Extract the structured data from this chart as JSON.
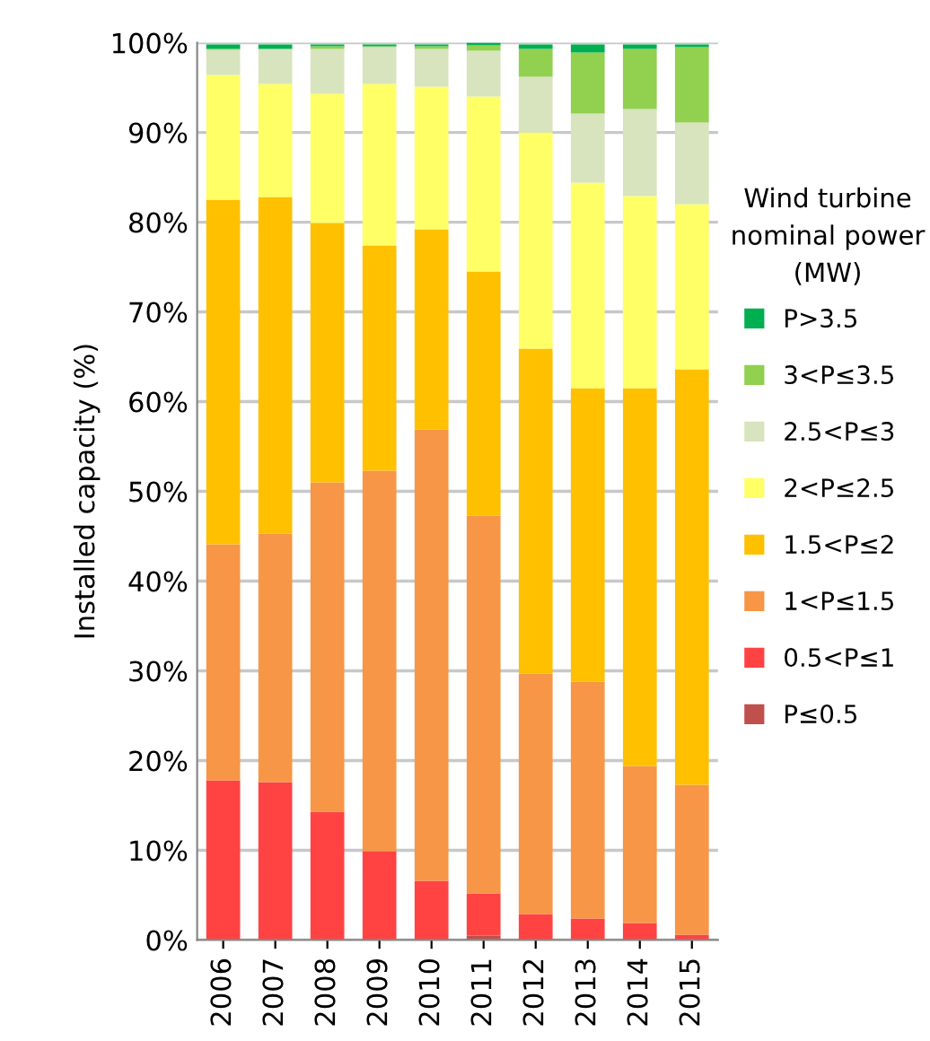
{
  "chart_data": {
    "type": "bar",
    "stacked": true,
    "ylabel": "Installed capacity (%)",
    "legend_title": "Wind turbine nominal power (MW)",
    "legend": "right",
    "grid": "y",
    "categories": [
      "2006",
      "2007",
      "2008",
      "2009",
      "2010",
      "2011",
      "2012",
      "2013",
      "2014",
      "2015"
    ],
    "ylim": [
      0,
      100
    ],
    "yticks": [
      {
        "value": 0,
        "label": "0%"
      },
      {
        "value": 10,
        "label": "10%"
      },
      {
        "value": 20,
        "label": "20%"
      },
      {
        "value": 30,
        "label": "30%"
      },
      {
        "value": 40,
        "label": "40%"
      },
      {
        "value": 50,
        "label": "50%"
      },
      {
        "value": 60,
        "label": "60%"
      },
      {
        "value": 70,
        "label": "70%"
      },
      {
        "value": 80,
        "label": "80%"
      },
      {
        "value": 90,
        "label": "90%"
      },
      {
        "value": 100,
        "label": "100%"
      }
    ],
    "series": [
      {
        "name": "P≤0.5",
        "color": "#c0504d",
        "values": [
          null,
          null,
          null,
          null,
          null,
          0.5,
          null,
          null,
          null,
          null
        ]
      },
      {
        "name": "0.5<P≤1",
        "color": "#ff4343",
        "values": [
          17.8,
          17.6,
          14.3,
          9.9,
          6.6,
          4.7,
          2.9,
          2.4,
          1.9,
          0.6
        ]
      },
      {
        "name": "1<P≤1.5",
        "color": "#f79646",
        "values": [
          26.3,
          27.7,
          36.7,
          42.4,
          50.3,
          42.1,
          26.8,
          26.4,
          17.5,
          16.7
        ]
      },
      {
        "name": "1.5<P≤2",
        "color": "#ffc000",
        "values": [
          38.4,
          37.5,
          28.9,
          25.1,
          22.3,
          27.2,
          36.2,
          32.7,
          42.1,
          46.3
        ]
      },
      {
        "name": "2<P≤2.5",
        "color": "#ffff66",
        "values": [
          13.9,
          12.6,
          14.4,
          18.0,
          15.9,
          19.5,
          24.1,
          22.9,
          21.4,
          18.4
        ]
      },
      {
        "name": "2.5<P≤3",
        "color": "#d7e4bd",
        "values": [
          2.8,
          3.9,
          5.0,
          4.1,
          4.2,
          5.1,
          6.2,
          7.7,
          9.7,
          9.1
        ]
      },
      {
        "name": "3<P≤3.5",
        "color": "#92d050",
        "values": [
          0.1,
          0.0,
          0.3,
          0.1,
          0.3,
          0.6,
          3.1,
          6.8,
          6.7,
          8.4
        ]
      },
      {
        "name": "P>3.5",
        "color": "#00b050",
        "values": [
          0.5,
          0.5,
          0.2,
          0.2,
          0.2,
          0.3,
          0.5,
          0.9,
          0.5,
          0.3
        ]
      }
    ]
  }
}
